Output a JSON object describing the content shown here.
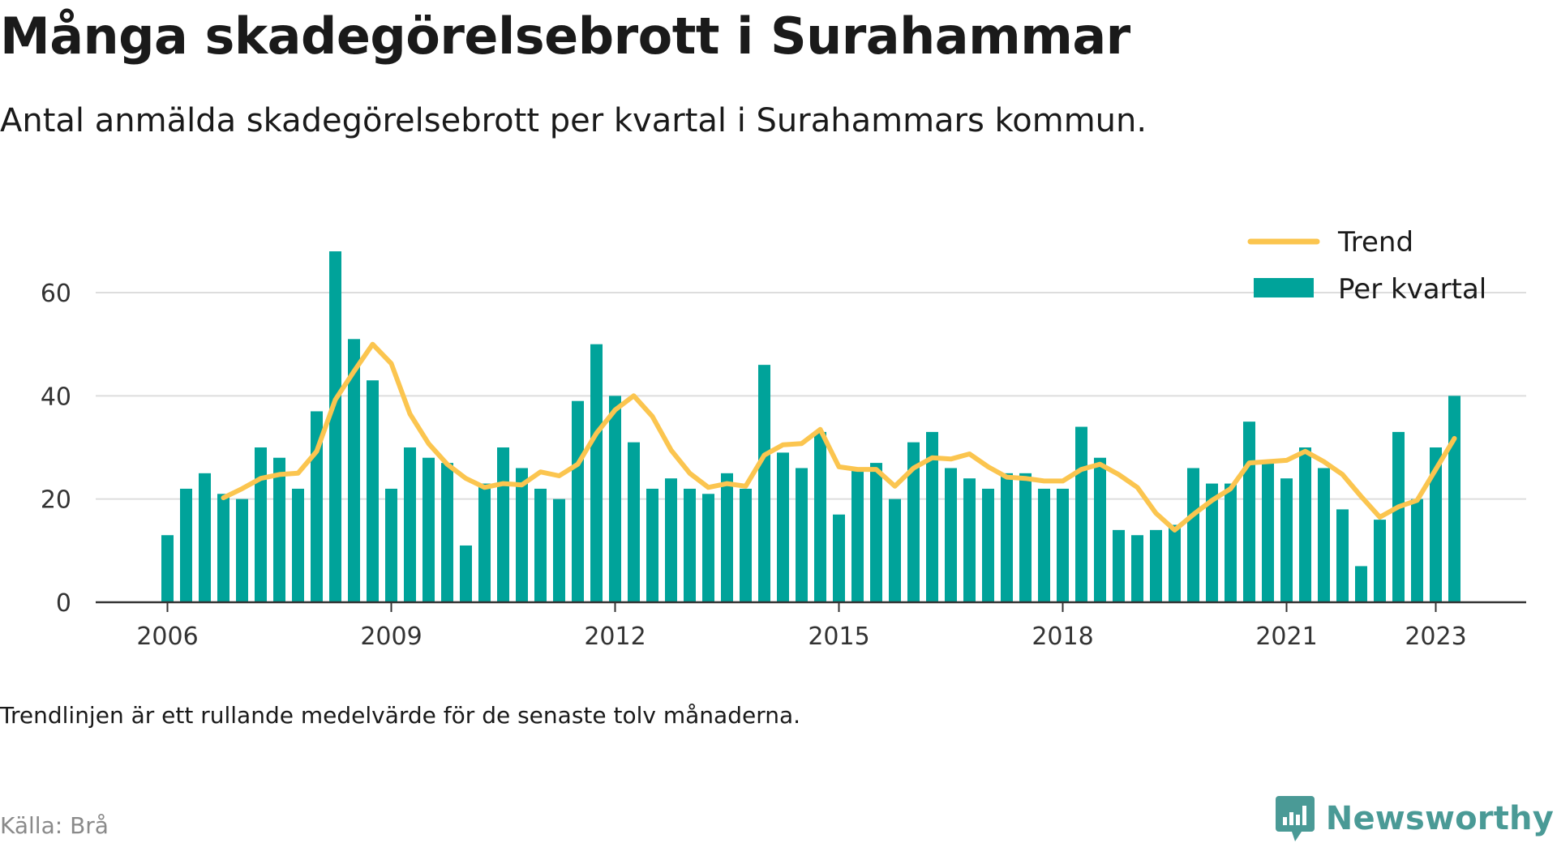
{
  "title": "Många skadegörelsebrott i Surahammar",
  "subtitle": "Antal anmälda skadegörelsebrott per kvartal i Surahammars kommun.",
  "note": "Trendlinjen är ett rullande medelvärde för de senaste tolv månaderna.",
  "source": "Källa: Brå",
  "brand": {
    "name": "Newsworthy",
    "icon": "newsworthy-logo-icon"
  },
  "colors": {
    "bars": "#00a39a",
    "trend": "#fbc54f",
    "grid": "#dddddd",
    "axis": "#333333"
  },
  "chart_data": {
    "type": "bar",
    "x_start": "2006 Q1",
    "frequency": "quarterly",
    "ylim": [
      0,
      70
    ],
    "yticks": [
      0,
      20,
      40,
      60
    ],
    "xticks": [
      "2006",
      "2009",
      "2012",
      "2015",
      "2018",
      "2021",
      "2023"
    ],
    "grid": true,
    "legend_position": "top-right",
    "series": [
      {
        "name": "Per kvartal",
        "type": "bar",
        "values": [
          13,
          22,
          25,
          21,
          20,
          30,
          28,
          22,
          37,
          68,
          51,
          43,
          22,
          30,
          28,
          27,
          11,
          23,
          30,
          26,
          22,
          20,
          39,
          50,
          40,
          31,
          22,
          24,
          22,
          21,
          25,
          22,
          46,
          29,
          26,
          33,
          17,
          26,
          27,
          20,
          31,
          33,
          26,
          24,
          22,
          25,
          25,
          22,
          22,
          34,
          28,
          14,
          13,
          14,
          15,
          26,
          23,
          23,
          35,
          27,
          24,
          30,
          26,
          18,
          7,
          16,
          33,
          20,
          30,
          40
        ]
      },
      {
        "name": "Trend",
        "type": "line",
        "values": [
          null,
          null,
          null,
          20.25,
          22,
          24,
          24.75,
          25,
          29.25,
          39.25,
          44.75,
          50,
          46.25,
          36.5,
          30.75,
          26.75,
          24,
          22.25,
          23,
          22.75,
          25.25,
          24.5,
          26.75,
          32.75,
          37.25,
          40,
          36,
          29.5,
          25,
          22.25,
          23,
          22.5,
          28.5,
          30.5,
          30.75,
          33.5,
          26.25,
          25.75,
          25.75,
          22.5,
          26,
          28,
          27.75,
          28.75,
          26.25,
          24.25,
          24,
          23.5,
          23.5,
          25.75,
          26.75,
          24.75,
          22.25,
          17.25,
          14,
          17,
          19.75,
          22,
          27,
          27.25,
          27.5,
          29.25,
          27.25,
          24.75,
          20.5,
          16.5,
          18.5,
          19.75,
          25.75,
          31.75
        ]
      }
    ]
  }
}
